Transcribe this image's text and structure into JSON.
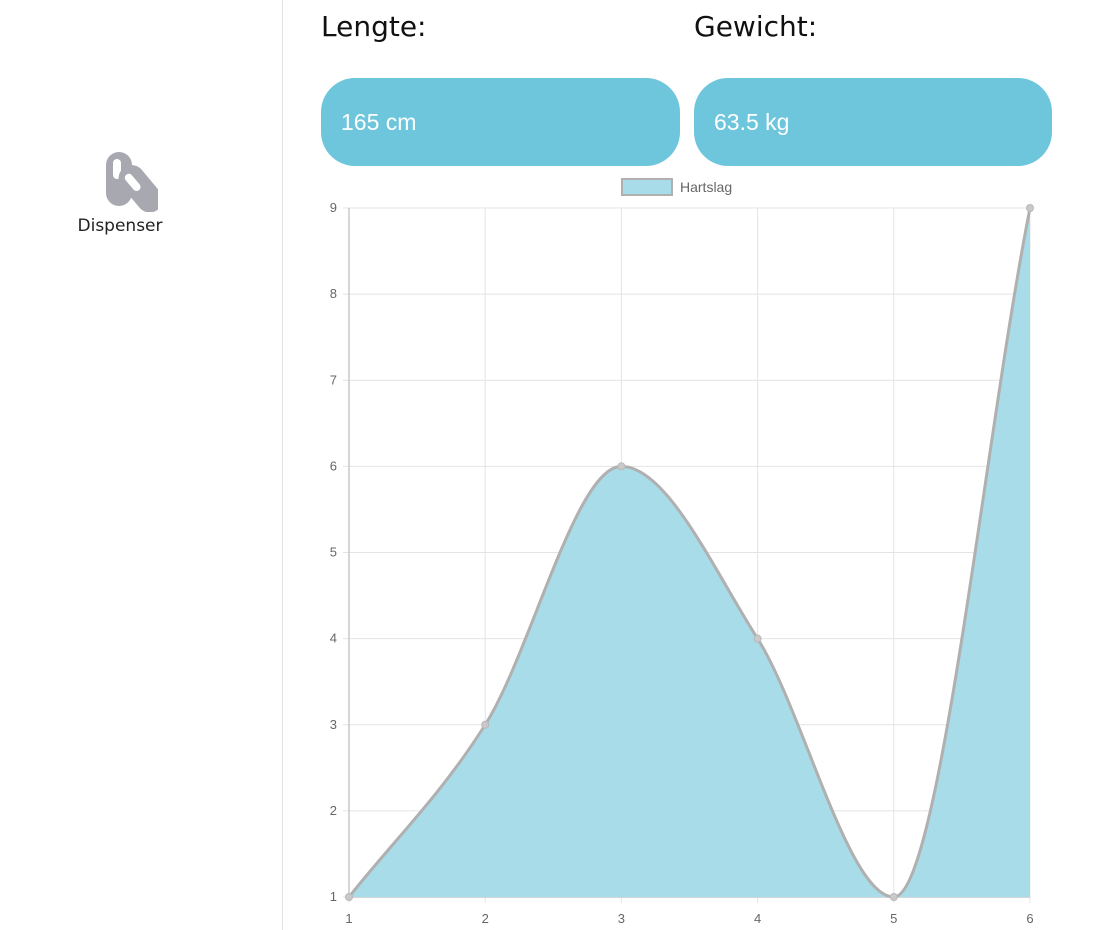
{
  "sidebar": {
    "items": [
      {
        "label": "Dispenser",
        "icon": "pills-icon"
      }
    ]
  },
  "stats": {
    "length": {
      "label": "Lengte:",
      "value": "165 cm"
    },
    "weight": {
      "label": "Gewicht:",
      "value": "63.5 kg"
    }
  },
  "colors": {
    "stat_box": "#6ec6dc",
    "area_fill": "#a8dce9",
    "area_stroke": "#b0b0b0",
    "icon": "#a8a8b0"
  },
  "chart_data": {
    "type": "area",
    "legend": "top-center",
    "grid": true,
    "x": [
      1,
      2,
      3,
      4,
      5,
      6
    ],
    "series": [
      {
        "name": "Hartslag",
        "values": [
          1,
          3,
          6,
          4,
          1,
          9
        ]
      }
    ],
    "xlim": [
      1,
      6
    ],
    "ylim": [
      1,
      9
    ],
    "yticks": [
      1,
      2,
      3,
      4,
      5,
      6,
      7,
      8,
      9
    ],
    "xticks": [
      1,
      2,
      3,
      4,
      5,
      6
    ]
  }
}
